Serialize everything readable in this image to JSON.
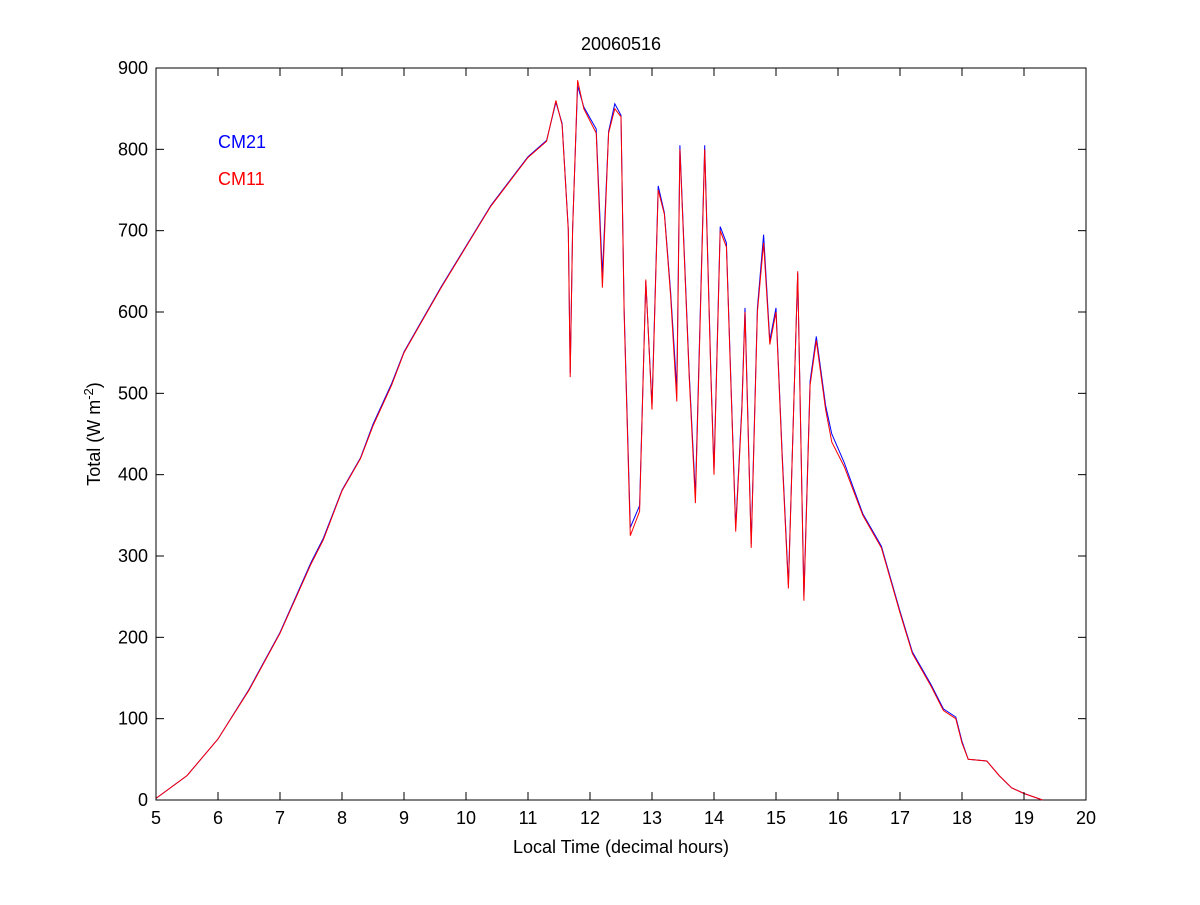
{
  "chart_data": {
    "type": "line",
    "title": "20060516",
    "xlabel": "Local Time (decimal hours)",
    "ylabel": {
      "main": "Total (W m",
      "sup": "-2",
      "close": ")"
    },
    "xlim": [
      5,
      20
    ],
    "ylim": [
      0,
      900
    ],
    "xticks": [
      5,
      6,
      7,
      8,
      9,
      10,
      11,
      12,
      13,
      14,
      15,
      16,
      17,
      18,
      19,
      20
    ],
    "yticks": [
      0,
      100,
      200,
      300,
      400,
      500,
      600,
      700,
      800,
      900
    ],
    "grid": false,
    "legend_placement": "top-left",
    "series": [
      {
        "name": "CM21",
        "color": "#0000ff",
        "x": [
          5.0,
          5.5,
          6.0,
          6.5,
          7.0,
          7.5,
          7.7,
          8.0,
          8.3,
          8.5,
          8.8,
          9.0,
          9.3,
          9.6,
          10.0,
          10.4,
          10.8,
          11.0,
          11.3,
          11.45,
          11.55,
          11.65,
          11.68,
          11.72,
          11.8,
          11.9,
          12.1,
          12.2,
          12.3,
          12.4,
          12.5,
          12.55,
          12.65,
          12.8,
          12.9,
          13.0,
          13.1,
          13.2,
          13.3,
          13.4,
          13.45,
          13.6,
          13.7,
          13.85,
          13.95,
          14.0,
          14.1,
          14.2,
          14.35,
          14.45,
          14.5,
          14.6,
          14.7,
          14.8,
          14.9,
          15.0,
          15.1,
          15.2,
          15.35,
          15.45,
          15.55,
          15.65,
          15.8,
          15.9,
          16.1,
          16.4,
          16.7,
          17.0,
          17.2,
          17.5,
          17.7,
          17.9,
          18.0,
          18.1,
          18.4,
          18.6,
          18.8,
          19.0,
          19.3
        ],
        "y": [
          2,
          30,
          75,
          136,
          206,
          292,
          322,
          381,
          421,
          462,
          512,
          551,
          591,
          631,
          681,
          731,
          771,
          791,
          811,
          858,
          832,
          702,
          525,
          702,
          878,
          852,
          825,
          645,
          822,
          856,
          842,
          605,
          335,
          362,
          638,
          485,
          755,
          722,
          625,
          505,
          805,
          525,
          375,
          805,
          525,
          405,
          705,
          685,
          335,
          485,
          605,
          315,
          605,
          695,
          565,
          605,
          425,
          265,
          648,
          250,
          515,
          570,
          485,
          450,
          415,
          352,
          312,
          232,
          182,
          142,
          112,
          102,
          72,
          50,
          48,
          30,
          15,
          8,
          0
        ]
      },
      {
        "name": "CM11",
        "color": "#ff0000",
        "x": [
          5.0,
          5.5,
          6.0,
          6.5,
          7.0,
          7.5,
          7.7,
          8.0,
          8.3,
          8.5,
          8.8,
          9.0,
          9.3,
          9.6,
          10.0,
          10.4,
          10.8,
          11.0,
          11.3,
          11.45,
          11.55,
          11.65,
          11.68,
          11.72,
          11.8,
          11.9,
          12.1,
          12.2,
          12.3,
          12.4,
          12.5,
          12.55,
          12.65,
          12.8,
          12.9,
          13.0,
          13.1,
          13.2,
          13.3,
          13.4,
          13.45,
          13.6,
          13.7,
          13.85,
          13.95,
          14.0,
          14.1,
          14.2,
          14.35,
          14.45,
          14.5,
          14.6,
          14.7,
          14.8,
          14.9,
          15.0,
          15.1,
          15.2,
          15.35,
          15.45,
          15.55,
          15.65,
          15.8,
          15.9,
          16.1,
          16.4,
          16.7,
          17.0,
          17.2,
          17.5,
          17.7,
          17.9,
          18.0,
          18.1,
          18.4,
          18.6,
          18.8,
          19.0,
          19.3
        ],
        "y": [
          2,
          30,
          75,
          135,
          205,
          290,
          320,
          380,
          420,
          460,
          510,
          550,
          590,
          630,
          680,
          730,
          770,
          790,
          810,
          860,
          830,
          700,
          520,
          700,
          885,
          850,
          820,
          630,
          820,
          850,
          840,
          600,
          325,
          355,
          640,
          480,
          750,
          720,
          620,
          490,
          800,
          520,
          365,
          800,
          520,
          400,
          700,
          680,
          330,
          480,
          600,
          310,
          600,
          685,
          560,
          600,
          420,
          260,
          650,
          245,
          510,
          565,
          480,
          440,
          410,
          350,
          310,
          230,
          180,
          140,
          110,
          100,
          70,
          50,
          48,
          30,
          15,
          8,
          0
        ]
      }
    ]
  }
}
